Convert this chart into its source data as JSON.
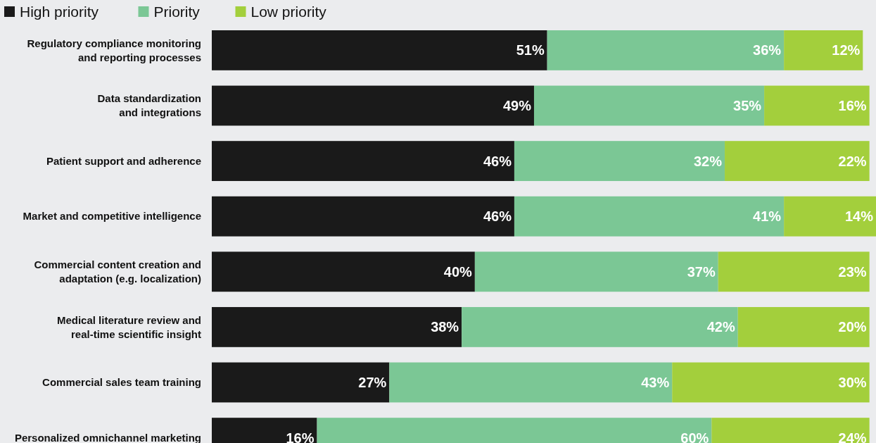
{
  "chart_data": {
    "type": "bar",
    "orientation": "horizontal",
    "stacked": true,
    "data_labels": true,
    "legend": "top left",
    "grid": false,
    "categories": [
      "Regulatory compliance monitoring and reporting processes",
      "Data standardization and integrations",
      "Patient support and adherence",
      "Market and competitive intelligence",
      "Commercial content creation and adaptation (e.g. localization)",
      "Medical literature review and real-time scientific insight",
      "Commercial sales team training",
      "Personalized omnichannel marketing"
    ],
    "series": [
      {
        "name": "High priority",
        "color": "#1a1a1a",
        "values": [
          51,
          49,
          46,
          46,
          40,
          38,
          27,
          16
        ],
        "value_labels": [
          "51%",
          "49%",
          "46%",
          "46%",
          "40%",
          "38%",
          "27%",
          "16%"
        ]
      },
      {
        "name": "Priority",
        "color": "#7bc795",
        "values": [
          36,
          35,
          32,
          41,
          37,
          42,
          43,
          60
        ],
        "value_labels": [
          "36%",
          "35%",
          "32%",
          "41%",
          "37%",
          "42%",
          "43%",
          "60%"
        ]
      },
      {
        "name": "Low priority",
        "color": "#a3cf3c",
        "values": [
          12,
          16,
          22,
          14,
          23,
          20,
          30,
          24
        ],
        "value_labels": [
          "12%",
          "16%",
          "22%",
          "14%",
          "23%",
          "20%",
          "30%",
          "24%"
        ]
      }
    ]
  }
}
